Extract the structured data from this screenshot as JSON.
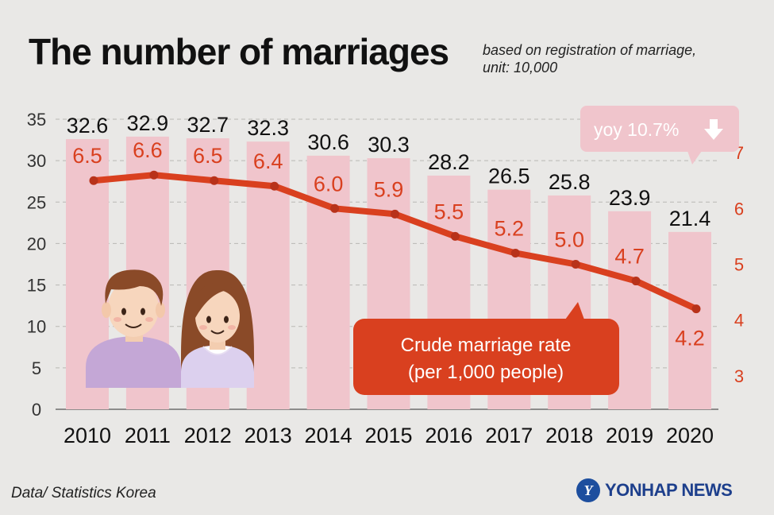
{
  "header": {
    "title": "The number of marriages",
    "subtitle_line1": "based on registration of marriage,",
    "subtitle_line2": "unit: 10,000"
  },
  "footer": {
    "source": "Data/ Statistics Korea",
    "brand": "YONHAP NEWS"
  },
  "icons": {
    "brand_logo": "yonhap-globe-icon",
    "decoration": "couple-illustration",
    "arrow": "down-arrow-icon"
  },
  "colors": {
    "background": "#e9e8e6",
    "bar": "#f0c5cc",
    "line": "#d9401f",
    "rate_label": "#d9401f",
    "callout": "#d9401f",
    "yoy_badge": "#f0c5cc"
  },
  "chart_data": {
    "type": "bar",
    "categories": [
      "2010",
      "2011",
      "2012",
      "2013",
      "2014",
      "2015",
      "2016",
      "2017",
      "2018",
      "2019",
      "2020"
    ],
    "series": [
      {
        "type": "bar",
        "axis": "left",
        "values": [
          32.6,
          32.9,
          32.7,
          32.3,
          30.6,
          30.3,
          28.2,
          26.5,
          25.8,
          23.9,
          21.4
        ],
        "labels": [
          "32.6",
          "32.9",
          "32.7",
          "32.3",
          "30.6",
          "30.3",
          "28.2",
          "26.5",
          "25.8",
          "23.9",
          "21.4"
        ]
      },
      {
        "type": "line",
        "axis": "right",
        "values": [
          6.5,
          6.6,
          6.5,
          6.4,
          6.0,
          5.9,
          5.5,
          5.2,
          5.0,
          4.7,
          4.2
        ],
        "labels": [
          "6.5",
          "6.6",
          "6.5",
          "6.4",
          "6.0",
          "5.9",
          "5.5",
          "5.2",
          "5.0",
          "4.7",
          "4.2"
        ]
      }
    ],
    "ylim": [
      0,
      35
    ],
    "yticks": [
      "0",
      "5",
      "10",
      "15",
      "20",
      "25",
      "30",
      "35"
    ],
    "ylim_right": [
      2.4,
      7.6
    ],
    "yticks_right": [
      "3",
      "4",
      "5",
      "6",
      "7"
    ],
    "grid": true,
    "callout": {
      "line1": "Crude marriage rate",
      "line2": "(per 1,000 people)"
    },
    "yoy_badge": "yoy 10.7%"
  }
}
